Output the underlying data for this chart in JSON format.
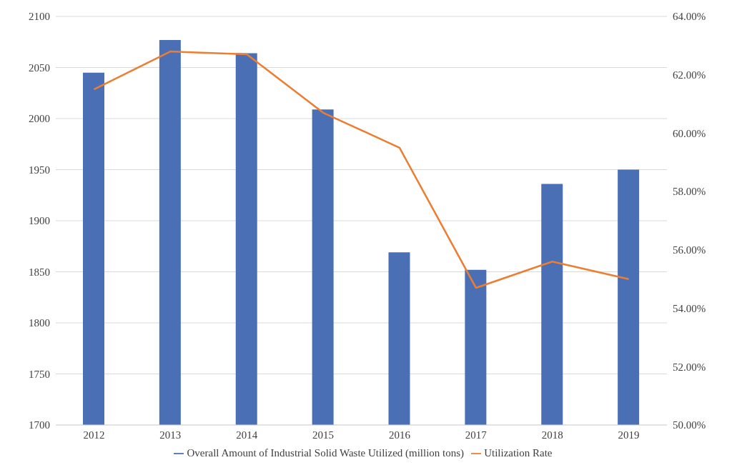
{
  "chart_data": {
    "type": "bar",
    "categories": [
      "2012",
      "2013",
      "2014",
      "2015",
      "2016",
      "2017",
      "2018",
      "2019"
    ],
    "series": [
      {
        "name": "Overall Amount of Industrial Solid Waste Utilized (million tons)",
        "color": "#4a6fb5",
        "values": [
          2045,
          2077,
          2064,
          2009,
          1869,
          1852,
          1936,
          1950
        ]
      },
      {
        "name": "Utilization Rate",
        "type": "line",
        "axis": "y2",
        "color": "#ed7d31",
        "values": [
          61.5,
          62.8,
          62.7,
          60.7,
          59.5,
          54.7,
          55.6,
          55.0
        ]
      }
    ],
    "ylim": [
      1700,
      2100
    ],
    "yticks": [
      1700,
      1750,
      1800,
      1850,
      1900,
      1950,
      2000,
      2050,
      2100
    ],
    "y2lim": [
      50,
      64
    ],
    "y2ticks": [
      {
        "value": 50,
        "label": "50.00%"
      },
      {
        "value": 52,
        "label": "52.00%"
      },
      {
        "value": 54,
        "label": "54.00%"
      },
      {
        "value": 56,
        "label": "56.00%"
      },
      {
        "value": 58,
        "label": "58.00%"
      },
      {
        "value": 60,
        "label": "60.00%"
      },
      {
        "value": 62,
        "label": "62.00%"
      },
      {
        "value": 64,
        "label": "64.00%"
      }
    ],
    "grid": "y",
    "legend": "bottom",
    "marker": "none"
  }
}
